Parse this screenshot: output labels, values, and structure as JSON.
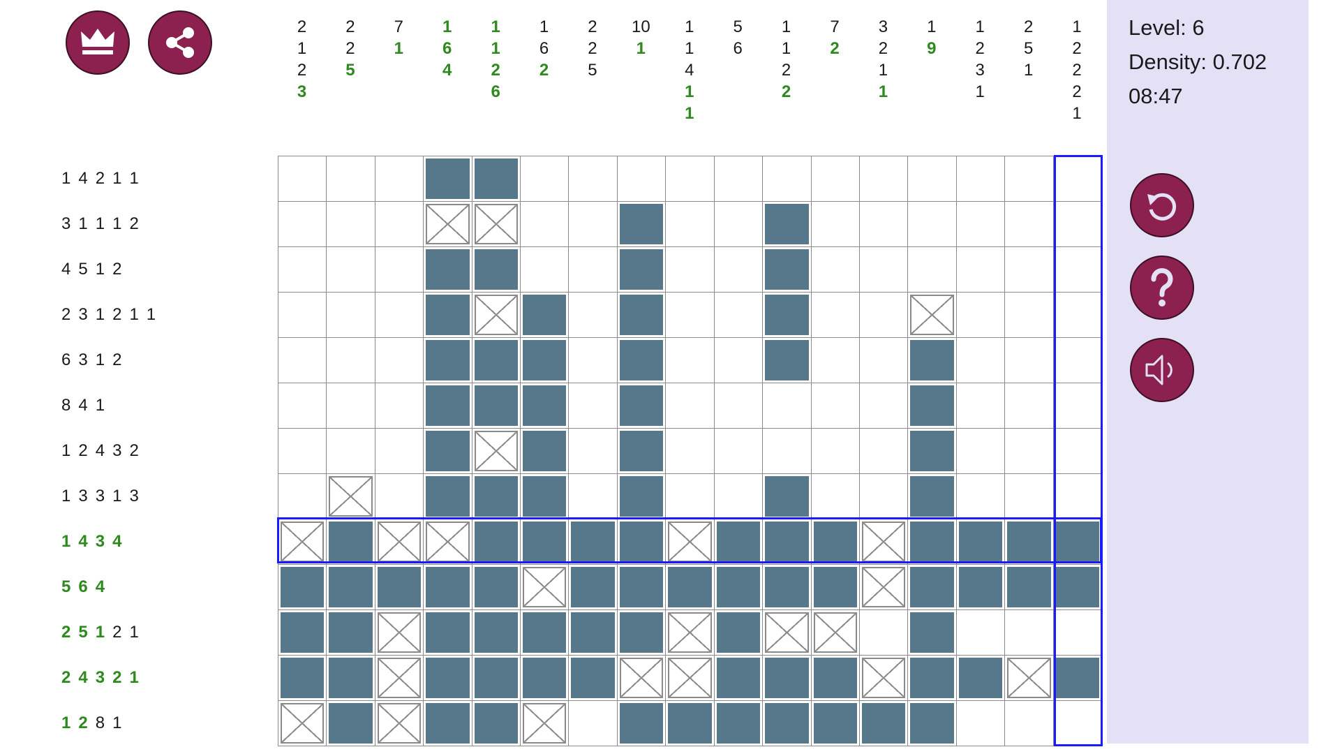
{
  "info": {
    "level": "Level: 6",
    "density": "Density: 0.702",
    "timer": "08:47"
  },
  "icons": {
    "top": [
      "crown-icon",
      "share-icon"
    ],
    "side": [
      "restart-icon",
      "help-icon",
      "sound-icon"
    ]
  },
  "colors": {
    "button": "#8c2150",
    "filled": "#57778a",
    "panel": "#e4e1f7",
    "highlight": "#1a1aff",
    "solved_clue": "#2d8a1d"
  },
  "puzzle": {
    "size": {
      "rows": 13,
      "cols": 17
    },
    "highlight": {
      "row": 8,
      "col": 16
    },
    "column_clues": [
      [
        {
          "v": "2",
          "d": false
        },
        {
          "v": "1",
          "d": false
        },
        {
          "v": "2",
          "d": false
        },
        {
          "v": "3",
          "d": true
        }
      ],
      [
        {
          "v": "2",
          "d": false
        },
        {
          "v": "2",
          "d": false
        },
        {
          "v": "5",
          "d": true
        }
      ],
      [
        {
          "v": "7",
          "d": false
        },
        {
          "v": "1",
          "d": true
        }
      ],
      [
        {
          "v": "1",
          "d": true
        },
        {
          "v": "6",
          "d": true
        },
        {
          "v": "4",
          "d": true
        }
      ],
      [
        {
          "v": "1",
          "d": true
        },
        {
          "v": "1",
          "d": true
        },
        {
          "v": "2",
          "d": true
        },
        {
          "v": "6",
          "d": true
        }
      ],
      [
        {
          "v": "1",
          "d": false
        },
        {
          "v": "6",
          "d": false
        },
        {
          "v": "2",
          "d": true
        }
      ],
      [
        {
          "v": "2",
          "d": false
        },
        {
          "v": "2",
          "d": false
        },
        {
          "v": "5",
          "d": false
        }
      ],
      [
        {
          "v": "10",
          "d": false
        },
        {
          "v": "1",
          "d": true
        }
      ],
      [
        {
          "v": "1",
          "d": false
        },
        {
          "v": "1",
          "d": false
        },
        {
          "v": "4",
          "d": false
        },
        {
          "v": "1",
          "d": true
        },
        {
          "v": "1",
          "d": true
        }
      ],
      [
        {
          "v": "5",
          "d": false
        },
        {
          "v": "6",
          "d": false
        }
      ],
      [
        {
          "v": "1",
          "d": false
        },
        {
          "v": "1",
          "d": false
        },
        {
          "v": "2",
          "d": false
        },
        {
          "v": "2",
          "d": true
        }
      ],
      [
        {
          "v": "7",
          "d": false
        },
        {
          "v": "2",
          "d": true
        }
      ],
      [
        {
          "v": "3",
          "d": false
        },
        {
          "v": "2",
          "d": false
        },
        {
          "v": "1",
          "d": false
        },
        {
          "v": "1",
          "d": true
        }
      ],
      [
        {
          "v": "1",
          "d": false
        },
        {
          "v": "9",
          "d": true
        }
      ],
      [
        {
          "v": "1",
          "d": false
        },
        {
          "v": "2",
          "d": false
        },
        {
          "v": "3",
          "d": false
        },
        {
          "v": "1",
          "d": false
        }
      ],
      [
        {
          "v": "2",
          "d": false
        },
        {
          "v": "5",
          "d": false
        },
        {
          "v": "1",
          "d": false
        }
      ],
      [
        {
          "v": "1",
          "d": false
        },
        {
          "v": "2",
          "d": false
        },
        {
          "v": "2",
          "d": false
        },
        {
          "v": "2",
          "d": false
        },
        {
          "v": "1",
          "d": false
        }
      ]
    ],
    "row_clues": [
      [
        {
          "v": "1",
          "d": false
        },
        {
          "v": "4",
          "d": false
        },
        {
          "v": "2",
          "d": false
        },
        {
          "v": "1",
          "d": false
        },
        {
          "v": "1",
          "d": false
        }
      ],
      [
        {
          "v": "3",
          "d": false
        },
        {
          "v": "1",
          "d": false
        },
        {
          "v": "1",
          "d": false
        },
        {
          "v": "1",
          "d": false
        },
        {
          "v": "2",
          "d": false
        }
      ],
      [
        {
          "v": "4",
          "d": false
        },
        {
          "v": "5",
          "d": false
        },
        {
          "v": "1",
          "d": false
        },
        {
          "v": "2",
          "d": false
        }
      ],
      [
        {
          "v": "2",
          "d": false
        },
        {
          "v": "3",
          "d": false
        },
        {
          "v": "1",
          "d": false
        },
        {
          "v": "2",
          "d": false
        },
        {
          "v": "1",
          "d": false
        },
        {
          "v": "1",
          "d": false
        }
      ],
      [
        {
          "v": "6",
          "d": false
        },
        {
          "v": "3",
          "d": false
        },
        {
          "v": "1",
          "d": false
        },
        {
          "v": "2",
          "d": false
        }
      ],
      [
        {
          "v": "8",
          "d": false
        },
        {
          "v": "4",
          "d": false
        },
        {
          "v": "1",
          "d": false
        }
      ],
      [
        {
          "v": "1",
          "d": false
        },
        {
          "v": "2",
          "d": false
        },
        {
          "v": "4",
          "d": false
        },
        {
          "v": "3",
          "d": false
        },
        {
          "v": "2",
          "d": false
        }
      ],
      [
        {
          "v": "1",
          "d": false
        },
        {
          "v": "3",
          "d": false
        },
        {
          "v": "3",
          "d": false
        },
        {
          "v": "1",
          "d": false
        },
        {
          "v": "3",
          "d": false
        }
      ],
      [
        {
          "v": "1",
          "d": true
        },
        {
          "v": "4",
          "d": true
        },
        {
          "v": "3",
          "d": true
        },
        {
          "v": "4",
          "d": true
        }
      ],
      [
        {
          "v": "5",
          "d": true
        },
        {
          "v": "6",
          "d": true
        },
        {
          "v": "4",
          "d": true
        }
      ],
      [
        {
          "v": "2",
          "d": true
        },
        {
          "v": "5",
          "d": true
        },
        {
          "v": "1",
          "d": true
        },
        {
          "v": "2",
          "d": false
        },
        {
          "v": "1",
          "d": false
        }
      ],
      [
        {
          "v": "2",
          "d": true
        },
        {
          "v": "4",
          "d": true
        },
        {
          "v": "3",
          "d": true
        },
        {
          "v": "2",
          "d": true
        },
        {
          "v": "1",
          "d": true
        }
      ],
      [
        {
          "v": "1",
          "d": true
        },
        {
          "v": "2",
          "d": true
        },
        {
          "v": "8",
          "d": false
        },
        {
          "v": "1",
          "d": false
        }
      ]
    ],
    "cells": [
      "...##............",
      "...XX..#..#......",
      "...##..#..#......",
      "...#X#.#..#..X...",
      "...###.#..#..#...",
      "...###.#.....#...",
      "...#X#.#.....#...",
      ".X.###.#..#..#...",
      "X#XX####X###X####",
      "#####X######X####",
      "##X#####X#XX.#...",
      "##X####XX###X##X#",
      "X#X##X.#######..."
    ]
  }
}
